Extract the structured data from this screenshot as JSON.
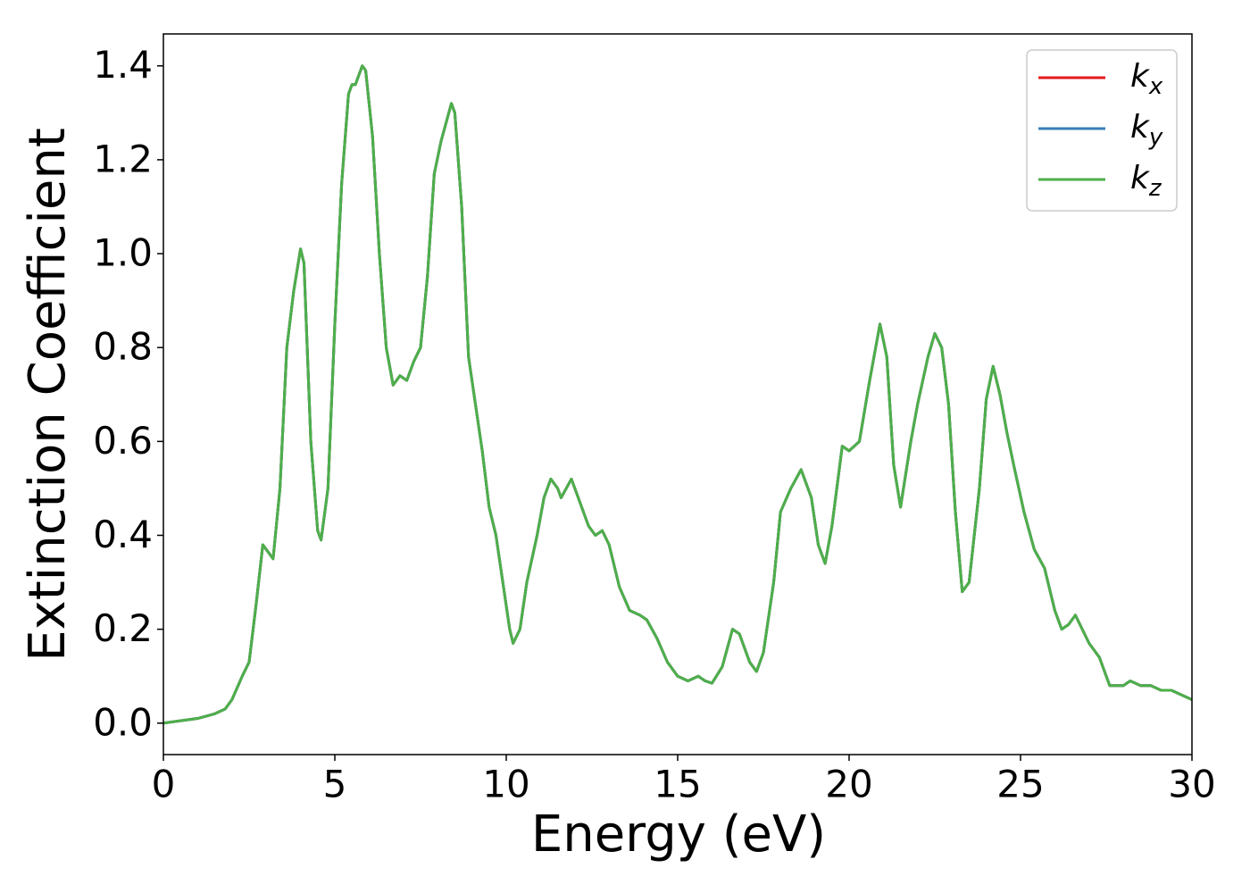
{
  "chart_data": {
    "type": "line",
    "xlabel": "Energy (eV)",
    "ylabel": "Extinction Coefficient",
    "x": [
      0,
      1,
      1.5,
      1.8,
      2.0,
      2.3,
      2.5,
      2.7,
      2.9,
      3.0,
      3.2,
      3.4,
      3.6,
      3.8,
      4.0,
      4.1,
      4.3,
      4.5,
      4.6,
      4.8,
      5.0,
      5.2,
      5.4,
      5.5,
      5.6,
      5.8,
      5.9,
      6.1,
      6.3,
      6.5,
      6.7,
      6.9,
      7.1,
      7.3,
      7.5,
      7.7,
      7.9,
      8.1,
      8.4,
      8.5,
      8.7,
      8.9,
      9.1,
      9.3,
      9.5,
      9.7,
      9.9,
      10.1,
      10.2,
      10.4,
      10.6,
      10.9,
      11.1,
      11.3,
      11.5,
      11.6,
      11.9,
      12.1,
      12.4,
      12.6,
      12.8,
      13.0,
      13.3,
      13.6,
      13.9,
      14.1,
      14.4,
      14.7,
      15.0,
      15.3,
      15.6,
      15.8,
      16.0,
      16.3,
      16.6,
      16.8,
      17.1,
      17.3,
      17.5,
      17.8,
      18.0,
      18.3,
      18.6,
      18.9,
      19.1,
      19.3,
      19.5,
      19.8,
      20.0,
      20.3,
      20.6,
      20.9,
      21.1,
      21.3,
      21.5,
      21.8,
      22.0,
      22.3,
      22.5,
      22.7,
      22.9,
      23.1,
      23.3,
      23.5,
      23.8,
      24.0,
      24.2,
      24.4,
      24.6,
      24.8,
      25.1,
      25.4,
      25.7,
      26.0,
      26.2,
      26.4,
      26.6,
      26.8,
      27.0,
      27.3,
      27.6,
      28.0,
      28.2,
      28.5,
      28.8,
      29.1,
      29.4,
      29.7,
      30
    ],
    "series": [
      {
        "name": "kx",
        "color": "#e41a1c",
        "values": [
          0,
          0.01,
          0.02,
          0.03,
          0.05,
          0.1,
          0.13,
          0.25,
          0.38,
          0.37,
          0.35,
          0.5,
          0.8,
          0.92,
          1.01,
          0.98,
          0.6,
          0.41,
          0.39,
          0.5,
          0.85,
          1.15,
          1.34,
          1.36,
          1.36,
          1.4,
          1.39,
          1.25,
          1.0,
          0.8,
          0.72,
          0.74,
          0.73,
          0.77,
          0.8,
          0.95,
          1.17,
          1.24,
          1.32,
          1.3,
          1.1,
          0.78,
          0.68,
          0.58,
          0.46,
          0.4,
          0.3,
          0.2,
          0.17,
          0.2,
          0.3,
          0.4,
          0.48,
          0.52,
          0.5,
          0.48,
          0.52,
          0.48,
          0.42,
          0.4,
          0.41,
          0.38,
          0.29,
          0.24,
          0.23,
          0.22,
          0.18,
          0.13,
          0.1,
          0.09,
          0.1,
          0.09,
          0.085,
          0.12,
          0.2,
          0.19,
          0.13,
          0.11,
          0.15,
          0.3,
          0.45,
          0.5,
          0.54,
          0.48,
          0.38,
          0.34,
          0.42,
          0.59,
          0.58,
          0.6,
          0.73,
          0.85,
          0.78,
          0.55,
          0.46,
          0.6,
          0.68,
          0.78,
          0.83,
          0.8,
          0.68,
          0.45,
          0.28,
          0.3,
          0.5,
          0.69,
          0.76,
          0.7,
          0.62,
          0.55,
          0.45,
          0.37,
          0.33,
          0.24,
          0.2,
          0.21,
          0.23,
          0.2,
          0.17,
          0.14,
          0.08,
          0.08,
          0.09,
          0.08,
          0.08,
          0.07,
          0.07,
          0.06,
          0.05
        ]
      },
      {
        "name": "ky",
        "color": "#377eb8",
        "values": [
          0,
          0.01,
          0.02,
          0.03,
          0.05,
          0.1,
          0.13,
          0.25,
          0.38,
          0.37,
          0.35,
          0.5,
          0.8,
          0.92,
          1.01,
          0.98,
          0.6,
          0.41,
          0.39,
          0.5,
          0.85,
          1.15,
          1.34,
          1.36,
          1.36,
          1.4,
          1.39,
          1.25,
          1.0,
          0.8,
          0.72,
          0.74,
          0.73,
          0.77,
          0.8,
          0.95,
          1.17,
          1.24,
          1.32,
          1.3,
          1.1,
          0.78,
          0.68,
          0.58,
          0.46,
          0.4,
          0.3,
          0.2,
          0.17,
          0.2,
          0.3,
          0.4,
          0.48,
          0.52,
          0.5,
          0.48,
          0.52,
          0.48,
          0.42,
          0.4,
          0.41,
          0.38,
          0.29,
          0.24,
          0.23,
          0.22,
          0.18,
          0.13,
          0.1,
          0.09,
          0.1,
          0.09,
          0.085,
          0.12,
          0.2,
          0.19,
          0.13,
          0.11,
          0.15,
          0.3,
          0.45,
          0.5,
          0.54,
          0.48,
          0.38,
          0.34,
          0.42,
          0.59,
          0.58,
          0.6,
          0.73,
          0.85,
          0.78,
          0.55,
          0.46,
          0.6,
          0.68,
          0.78,
          0.83,
          0.8,
          0.68,
          0.45,
          0.28,
          0.3,
          0.5,
          0.69,
          0.76,
          0.7,
          0.62,
          0.55,
          0.45,
          0.37,
          0.33,
          0.24,
          0.2,
          0.21,
          0.23,
          0.2,
          0.17,
          0.14,
          0.08,
          0.08,
          0.09,
          0.08,
          0.08,
          0.07,
          0.07,
          0.06,
          0.05
        ]
      },
      {
        "name": "kz",
        "color": "#4daf4a",
        "values": [
          0,
          0.01,
          0.02,
          0.03,
          0.05,
          0.1,
          0.13,
          0.25,
          0.38,
          0.37,
          0.35,
          0.5,
          0.8,
          0.92,
          1.01,
          0.98,
          0.6,
          0.41,
          0.39,
          0.5,
          0.85,
          1.15,
          1.34,
          1.36,
          1.36,
          1.4,
          1.39,
          1.25,
          1.0,
          0.8,
          0.72,
          0.74,
          0.73,
          0.77,
          0.8,
          0.95,
          1.17,
          1.24,
          1.32,
          1.3,
          1.1,
          0.78,
          0.68,
          0.58,
          0.46,
          0.4,
          0.3,
          0.2,
          0.17,
          0.2,
          0.3,
          0.4,
          0.48,
          0.52,
          0.5,
          0.48,
          0.52,
          0.48,
          0.42,
          0.4,
          0.41,
          0.38,
          0.29,
          0.24,
          0.23,
          0.22,
          0.18,
          0.13,
          0.1,
          0.09,
          0.1,
          0.09,
          0.085,
          0.12,
          0.2,
          0.19,
          0.13,
          0.11,
          0.15,
          0.3,
          0.45,
          0.5,
          0.54,
          0.48,
          0.38,
          0.34,
          0.42,
          0.59,
          0.58,
          0.6,
          0.73,
          0.85,
          0.78,
          0.55,
          0.46,
          0.6,
          0.68,
          0.78,
          0.83,
          0.8,
          0.68,
          0.45,
          0.28,
          0.3,
          0.5,
          0.69,
          0.76,
          0.7,
          0.62,
          0.55,
          0.45,
          0.37,
          0.33,
          0.24,
          0.2,
          0.21,
          0.23,
          0.2,
          0.17,
          0.14,
          0.08,
          0.08,
          0.09,
          0.08,
          0.08,
          0.07,
          0.07,
          0.06,
          0.05
        ]
      }
    ],
    "xlim": [
      0,
      30
    ],
    "xticks": [
      0,
      5,
      10,
      15,
      20,
      25,
      30
    ],
    "ylim": [
      -0.067,
      1.468
    ],
    "yticks": [
      {
        "value": 0,
        "label": "0.0"
      },
      {
        "value": 0.2,
        "label": "0.2"
      },
      {
        "value": 0.4,
        "label": "0.4"
      },
      {
        "value": 0.6,
        "label": "0.6"
      },
      {
        "value": 0.8,
        "label": "0.8"
      },
      {
        "value": 1.0,
        "label": "1.0"
      },
      {
        "value": 1.2,
        "label": "1.2"
      },
      {
        "value": 1.4,
        "label": "1.4"
      }
    ],
    "legend": "upper right",
    "grid": false
  }
}
